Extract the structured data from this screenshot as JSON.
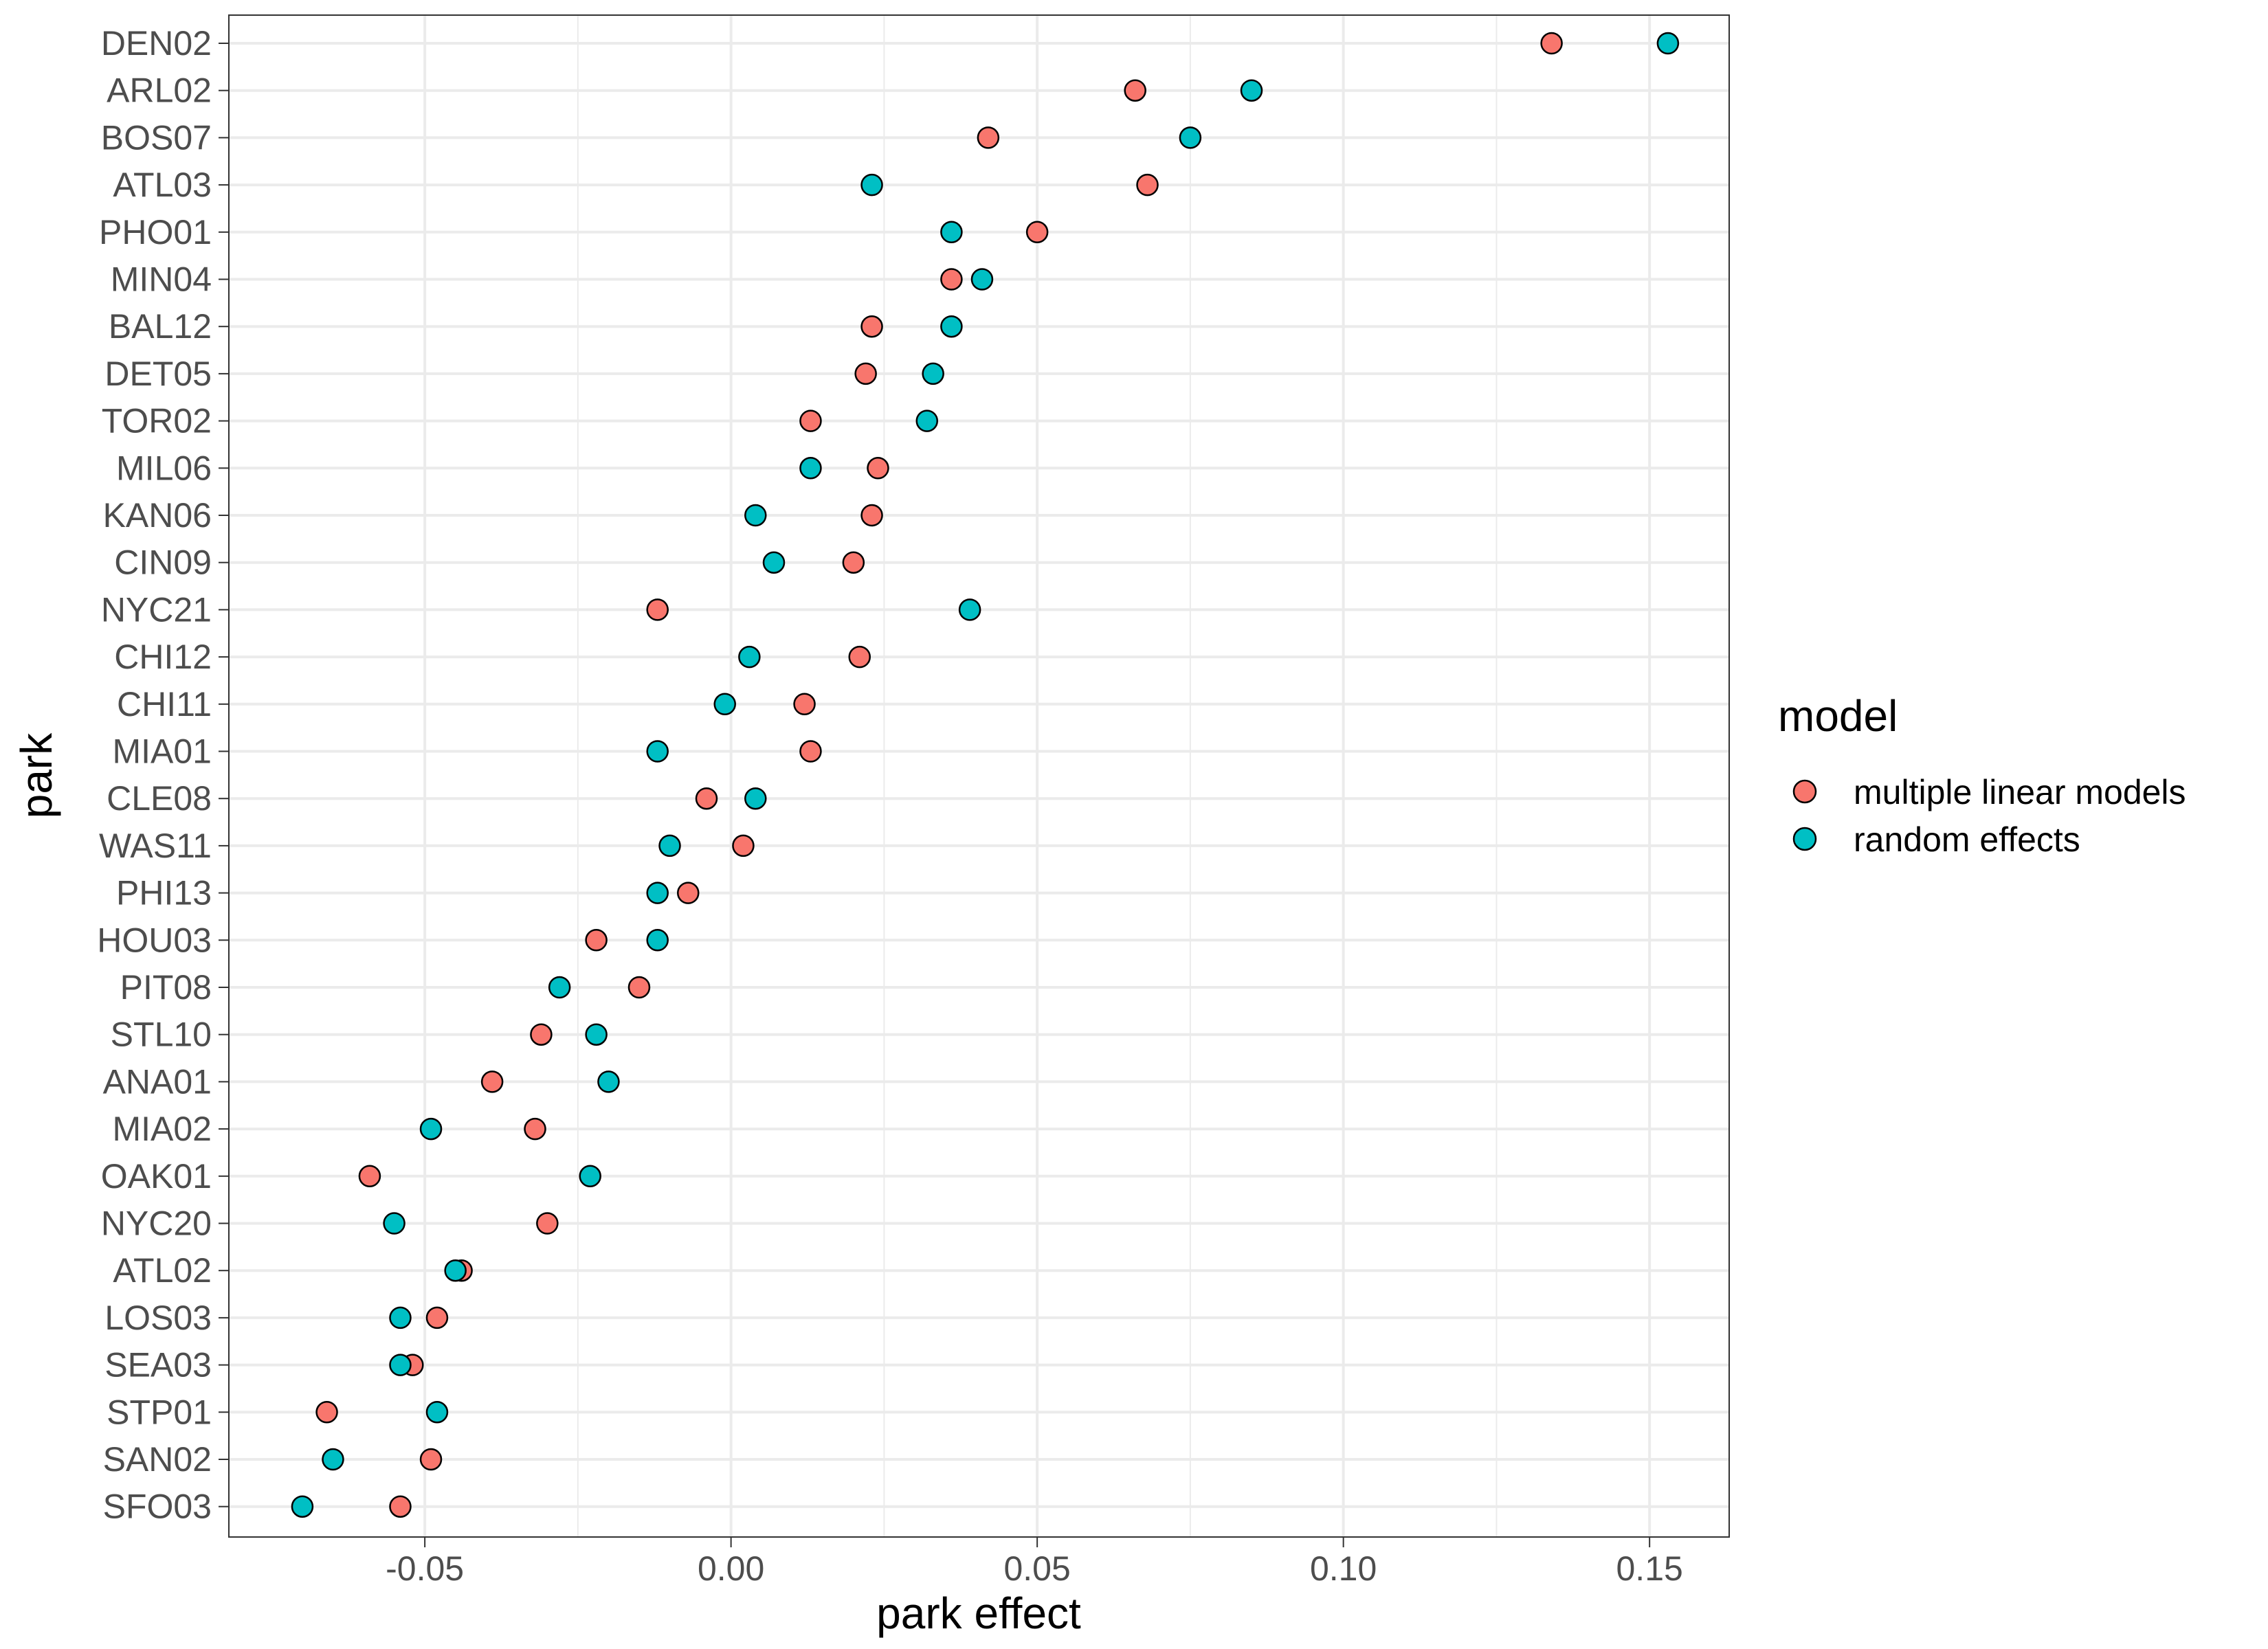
{
  "chart_data": {
    "type": "scatter",
    "xlabel": "park effect",
    "ylabel": "park",
    "xlim": [
      -0.082,
      0.163
    ],
    "x_ticks": [
      -0.05,
      0.0,
      0.05,
      0.1,
      0.15
    ],
    "x_tick_labels": [
      "-0.05",
      "0.00",
      "0.05",
      "0.10",
      "0.15"
    ],
    "grid": true,
    "legend_position": "right",
    "legend_title": "model",
    "categories": [
      "DEN02",
      "ARL02",
      "BOS07",
      "ATL03",
      "PHO01",
      "MIN04",
      "BAL12",
      "DET05",
      "TOR02",
      "MIL06",
      "KAN06",
      "CIN09",
      "NYC21",
      "CHI12",
      "CHI11",
      "MIA01",
      "CLE08",
      "WAS11",
      "PHI13",
      "HOU03",
      "PIT08",
      "STL10",
      "ANA01",
      "MIA02",
      "OAK01",
      "NYC20",
      "ATL02",
      "LOS03",
      "SEA03",
      "STP01",
      "SAN02",
      "SFO03"
    ],
    "series": [
      {
        "name": "multiple linear models",
        "color": "#F8766D",
        "values": [
          0.134,
          0.066,
          0.042,
          0.068,
          0.05,
          0.036,
          0.023,
          0.022,
          0.013,
          0.024,
          0.023,
          0.02,
          -0.012,
          0.021,
          0.012,
          0.013,
          -0.004,
          0.002,
          -0.007,
          -0.022,
          -0.015,
          -0.031,
          -0.039,
          -0.032,
          -0.059,
          -0.03,
          -0.044,
          -0.048,
          -0.052,
          -0.066,
          -0.049,
          -0.054
        ]
      },
      {
        "name": "random effects",
        "color": "#00BFC4",
        "values": [
          0.153,
          0.085,
          0.075,
          0.023,
          0.036,
          0.041,
          0.036,
          0.033,
          0.032,
          0.013,
          0.004,
          0.007,
          0.039,
          0.003,
          -0.001,
          -0.012,
          0.004,
          -0.01,
          -0.012,
          -0.012,
          -0.028,
          -0.022,
          -0.02,
          -0.049,
          -0.023,
          -0.055,
          -0.045,
          -0.054,
          -0.054,
          -0.048,
          -0.065,
          -0.07
        ]
      }
    ]
  }
}
